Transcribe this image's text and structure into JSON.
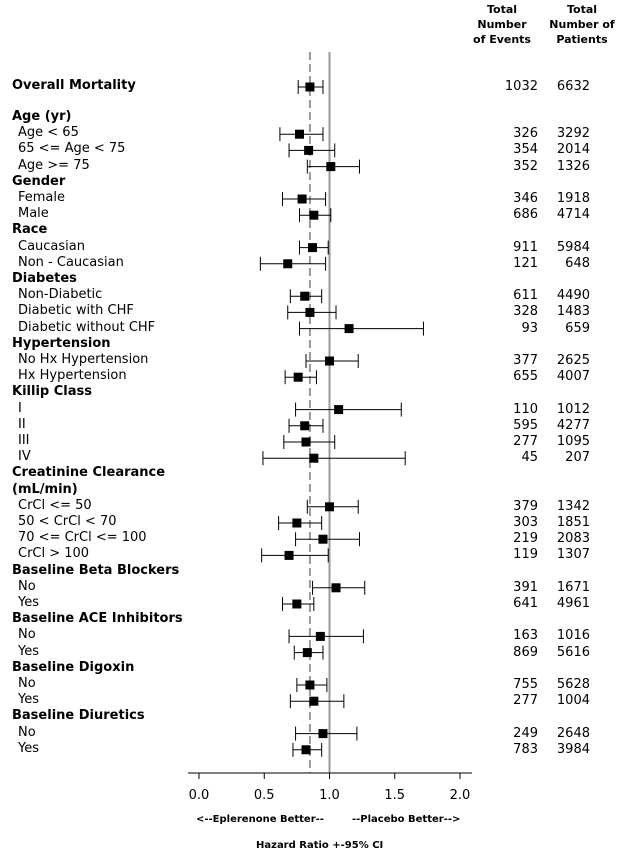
{
  "columns": {
    "events_header": "Total Number of Events",
    "patients_header": "Total Number of Patients"
  },
  "chart_data": {
    "type": "forest",
    "xlabel": "Hazard Ratio +-95% CI",
    "xlim": [
      0,
      2.0
    ],
    "xticks": [
      "0.0",
      "0.5",
      "1.0",
      "1.5",
      "2.0"
    ],
    "xtick_values": [
      0,
      0.5,
      1.0,
      1.5,
      2.0
    ],
    "reference_line": 1.0,
    "overall_line": 0.85,
    "left_note": "<--Eplerenone Better--",
    "right_note": "--Placebo Better-->",
    "rows": [
      {
        "label": "Overall Mortality",
        "group": true,
        "hr": 0.85,
        "lo": 0.76,
        "hi": 0.95,
        "events": "1032",
        "patients": "6632"
      },
      {
        "label": "Age (yr)",
        "group": true
      },
      {
        "label": "Age < 65",
        "hr": 0.77,
        "lo": 0.62,
        "hi": 0.95,
        "events": "326",
        "patients": "3292"
      },
      {
        "label": "65 <= Age < 75",
        "hr": 0.84,
        "lo": 0.69,
        "hi": 1.04,
        "events": "354",
        "patients": "2014"
      },
      {
        "label": "Age >= 75",
        "hr": 1.01,
        "lo": 0.83,
        "hi": 1.23,
        "events": "352",
        "patients": "1326"
      },
      {
        "label": "Gender",
        "group": true
      },
      {
        "label": "Female",
        "hr": 0.79,
        "lo": 0.64,
        "hi": 0.97,
        "events": "346",
        "patients": "1918"
      },
      {
        "label": "Male",
        "hr": 0.88,
        "lo": 0.77,
        "hi": 1.01,
        "events": "686",
        "patients": "4714"
      },
      {
        "label": "Race",
        "group": true
      },
      {
        "label": "Caucasian",
        "hr": 0.87,
        "lo": 0.77,
        "hi": 0.99,
        "events": "911",
        "patients": "5984"
      },
      {
        "label": "Non - Caucasian",
        "hr": 0.68,
        "lo": 0.47,
        "hi": 0.97,
        "events": "121",
        "patients": "648"
      },
      {
        "label": "Diabetes",
        "group": true
      },
      {
        "label": "Non-Diabetic",
        "hr": 0.81,
        "lo": 0.7,
        "hi": 0.94,
        "events": "611",
        "patients": "4490"
      },
      {
        "label": "Diabetic with CHF",
        "hr": 0.85,
        "lo": 0.68,
        "hi": 1.05,
        "events": "328",
        "patients": "1483"
      },
      {
        "label": "Diabetic without CHF",
        "hr": 1.15,
        "lo": 0.77,
        "hi": 1.72,
        "events": "93",
        "patients": "659"
      },
      {
        "label": "Hypertension",
        "group": true
      },
      {
        "label": "No Hx Hypertension",
        "hr": 1.0,
        "lo": 0.82,
        "hi": 1.22,
        "events": "377",
        "patients": "2625"
      },
      {
        "label": "Hx Hypertension",
        "hr": 0.76,
        "lo": 0.66,
        "hi": 0.9,
        "events": "655",
        "patients": "4007"
      },
      {
        "label": "Killip Class",
        "group": true
      },
      {
        "label": "I",
        "hr": 1.07,
        "lo": 0.74,
        "hi": 1.55,
        "events": "110",
        "patients": "1012"
      },
      {
        "label": "II",
        "hr": 0.81,
        "lo": 0.69,
        "hi": 0.95,
        "events": "595",
        "patients": "4277"
      },
      {
        "label": "III",
        "hr": 0.82,
        "lo": 0.65,
        "hi": 1.04,
        "events": "277",
        "patients": "1095"
      },
      {
        "label": "IV",
        "hr": 0.88,
        "lo": 0.49,
        "hi": 1.58,
        "events": "45",
        "patients": "207"
      },
      {
        "label": "Creatinine Clearance",
        "group": true
      },
      {
        "label": "(mL/min)",
        "group": true
      },
      {
        "label": "CrCl <= 50",
        "hr": 1.0,
        "lo": 0.83,
        "hi": 1.22,
        "events": "379",
        "patients": "1342"
      },
      {
        "label": "50 < CrCl < 70",
        "hr": 0.75,
        "lo": 0.61,
        "hi": 0.94,
        "events": "303",
        "patients": "1851"
      },
      {
        "label": "70 <= CrCl <= 100",
        "hr": 0.95,
        "lo": 0.74,
        "hi": 1.23,
        "events": "219",
        "patients": "2083"
      },
      {
        "label": "CrCl > 100",
        "hr": 0.69,
        "lo": 0.48,
        "hi": 0.99,
        "events": "119",
        "patients": "1307"
      },
      {
        "label": "Baseline Beta Blockers",
        "group": true
      },
      {
        "label": "No",
        "hr": 1.05,
        "lo": 0.87,
        "hi": 1.27,
        "events": "391",
        "patients": "1671"
      },
      {
        "label": "Yes",
        "hr": 0.75,
        "lo": 0.64,
        "hi": 0.88,
        "events": "641",
        "patients": "4961"
      },
      {
        "label": "Baseline ACE Inhibitors",
        "group": true
      },
      {
        "label": "No",
        "hr": 0.93,
        "lo": 0.69,
        "hi": 1.26,
        "events": "163",
        "patients": "1016"
      },
      {
        "label": "Yes",
        "hr": 0.83,
        "lo": 0.73,
        "hi": 0.95,
        "events": "869",
        "patients": "5616"
      },
      {
        "label": "Baseline Digoxin",
        "group": true
      },
      {
        "label": "No",
        "hr": 0.85,
        "lo": 0.75,
        "hi": 0.98,
        "events": "755",
        "patients": "5628"
      },
      {
        "label": "Yes",
        "hr": 0.88,
        "lo": 0.7,
        "hi": 1.11,
        "events": "277",
        "patients": "1004"
      },
      {
        "label": "Baseline Diuretics",
        "group": true
      },
      {
        "label": "No",
        "hr": 0.95,
        "lo": 0.74,
        "hi": 1.21,
        "events": "249",
        "patients": "2648"
      },
      {
        "label": "Yes",
        "hr": 0.82,
        "lo": 0.72,
        "hi": 0.94,
        "events": "783",
        "patients": "3984"
      }
    ]
  }
}
